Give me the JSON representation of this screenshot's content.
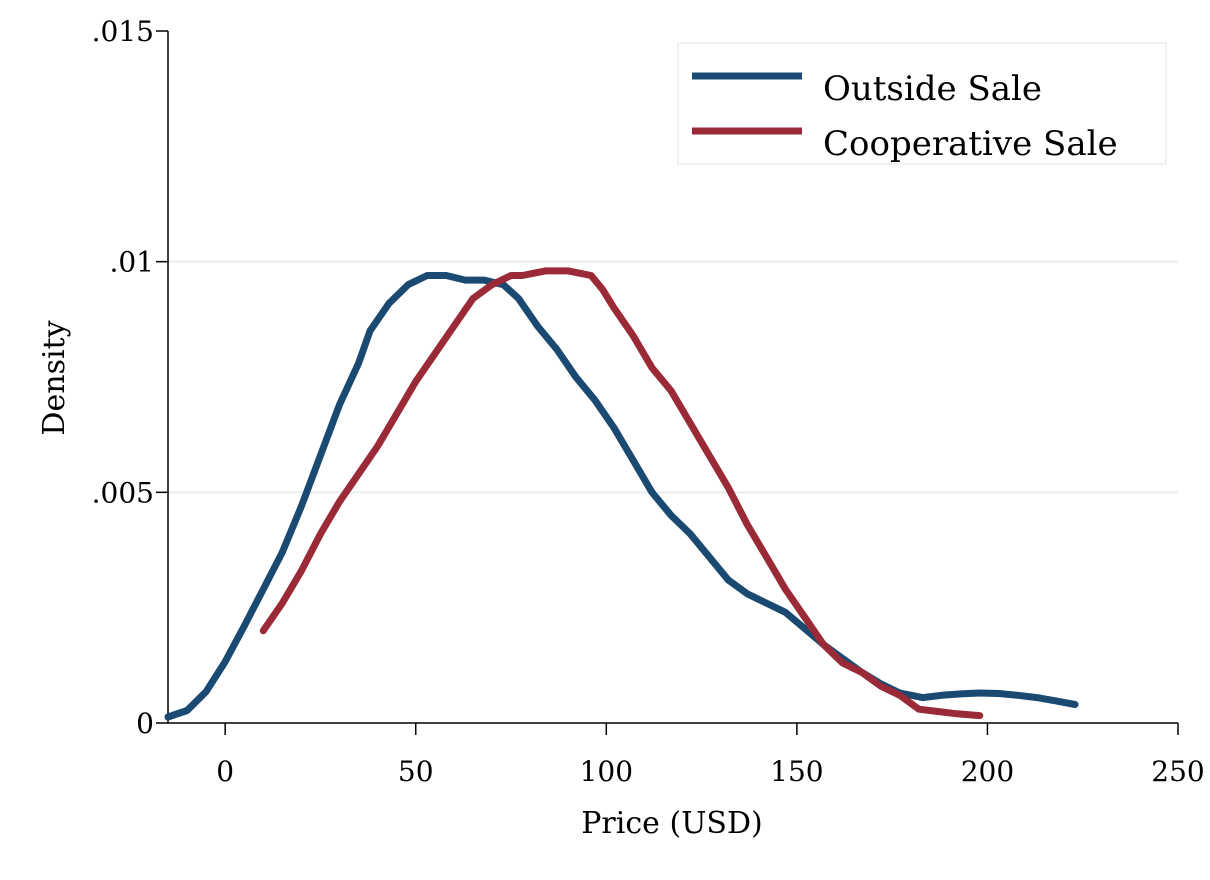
{
  "chart_data": {
    "type": "line",
    "title": "",
    "xlabel": "Price (USD)",
    "ylabel": "Density",
    "xlim": [
      -15,
      250
    ],
    "ylim": [
      0,
      0.015
    ],
    "x_ticks": [
      0,
      50,
      100,
      150,
      200,
      250
    ],
    "x_tick_labels": [
      "0",
      "50",
      "100",
      "150",
      "200",
      "250"
    ],
    "y_ticks": [
      0,
      0.005,
      0.01,
      0.015
    ],
    "y_tick_labels": [
      "0",
      ".005",
      ".01",
      ".015"
    ],
    "grid": {
      "horizontal": [
        0.005,
        0.01
      ],
      "color": "#e6eef2"
    },
    "legend_position": "top-right",
    "series": [
      {
        "name": "Outside Sale",
        "color": "#1a4a72",
        "x": [
          -15,
          -10,
          -5,
          0,
          5,
          10,
          15,
          20,
          25,
          30,
          35,
          38,
          43,
          48,
          53,
          58,
          63,
          68,
          73,
          77,
          82,
          87,
          92,
          97,
          102,
          107,
          112,
          117,
          122,
          127,
          132,
          137,
          142,
          147,
          152,
          157,
          162,
          167,
          172,
          177,
          183,
          188,
          193,
          198,
          203,
          208,
          213,
          218,
          223
        ],
        "y": [
          0.00013,
          0.00027,
          0.00068,
          0.00133,
          0.0021,
          0.0029,
          0.0037,
          0.0047,
          0.0058,
          0.0069,
          0.0078,
          0.0085,
          0.0091,
          0.0095,
          0.0097,
          0.0097,
          0.0096,
          0.0096,
          0.0095,
          0.0092,
          0.0086,
          0.0081,
          0.0075,
          0.007,
          0.0064,
          0.0057,
          0.005,
          0.0045,
          0.0041,
          0.0036,
          0.0031,
          0.0028,
          0.0026,
          0.0024,
          0.00205,
          0.0017,
          0.0014,
          0.0011,
          0.00085,
          0.00065,
          0.00055,
          0.0006,
          0.00063,
          0.00065,
          0.00064,
          0.0006,
          0.00055,
          0.00048,
          0.0004
        ]
      },
      {
        "name": "Cooperative Sale",
        "color": "#9b2a38",
        "x": [
          10,
          15,
          20,
          25,
          30,
          35,
          40,
          45,
          50,
          55,
          60,
          65,
          70,
          75,
          78,
          81,
          84,
          87,
          90,
          93,
          96,
          99,
          102,
          107,
          112,
          117,
          122,
          127,
          132,
          137,
          142,
          147,
          152,
          157,
          162,
          167,
          172,
          177,
          182,
          187,
          192,
          198
        ],
        "y": [
          0.002,
          0.0026,
          0.0033,
          0.0041,
          0.0048,
          0.0054,
          0.006,
          0.0067,
          0.0074,
          0.008,
          0.0086,
          0.0092,
          0.0095,
          0.0097,
          0.0097,
          0.00975,
          0.0098,
          0.0098,
          0.0098,
          0.00975,
          0.0097,
          0.0094,
          0.009,
          0.0084,
          0.0077,
          0.0072,
          0.0065,
          0.0058,
          0.0051,
          0.0043,
          0.0036,
          0.0029,
          0.0023,
          0.0017,
          0.0013,
          0.0011,
          0.0008,
          0.0006,
          0.0003,
          0.00025,
          0.0002,
          0.00016
        ]
      }
    ]
  }
}
